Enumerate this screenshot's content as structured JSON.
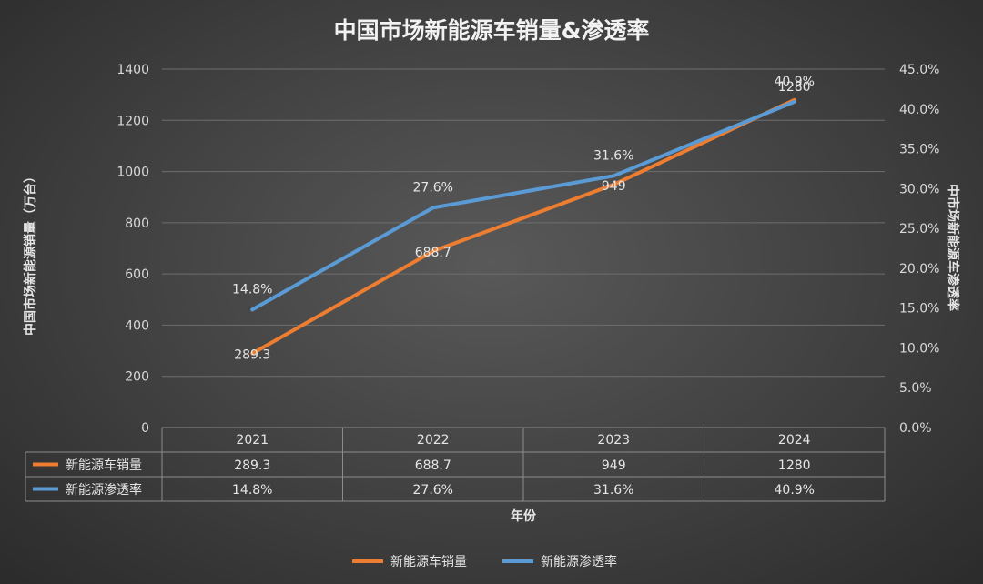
{
  "chart_data": {
    "type": "line",
    "title": "中国市场新能源车销量&渗透率",
    "xlabel": "年份",
    "ylabel": "中国市场新能源销量（万台）",
    "y2label": "中市场新能源车渗透率",
    "categories": [
      "2021",
      "2022",
      "2023",
      "2024"
    ],
    "ylim": [
      0,
      1400
    ],
    "y_ticks": [
      "0",
      "200",
      "400",
      "600",
      "800",
      "1000",
      "1200",
      "1400"
    ],
    "y2lim": [
      0,
      45
    ],
    "y2_ticks": [
      "0.0%",
      "5.0%",
      "10.0%",
      "15.0%",
      "20.0%",
      "25.0%",
      "30.0%",
      "35.0%",
      "40.0%",
      "45.0%"
    ],
    "grid": true,
    "legend_position": "bottom",
    "data_table": true,
    "series": [
      {
        "name": "新能源车销量",
        "axis": "left",
        "color": "#ed7d31",
        "values": [
          289.3,
          688.7,
          949,
          1280
        ],
        "labels": [
          "289.3",
          "688.7",
          "949",
          "1280"
        ]
      },
      {
        "name": "新能源渗透率",
        "axis": "right",
        "color": "#5b9bd5",
        "values": [
          14.8,
          27.6,
          31.6,
          40.9
        ],
        "labels": [
          "14.8%",
          "27.6%",
          "31.6%",
          "40.9%"
        ]
      }
    ]
  }
}
